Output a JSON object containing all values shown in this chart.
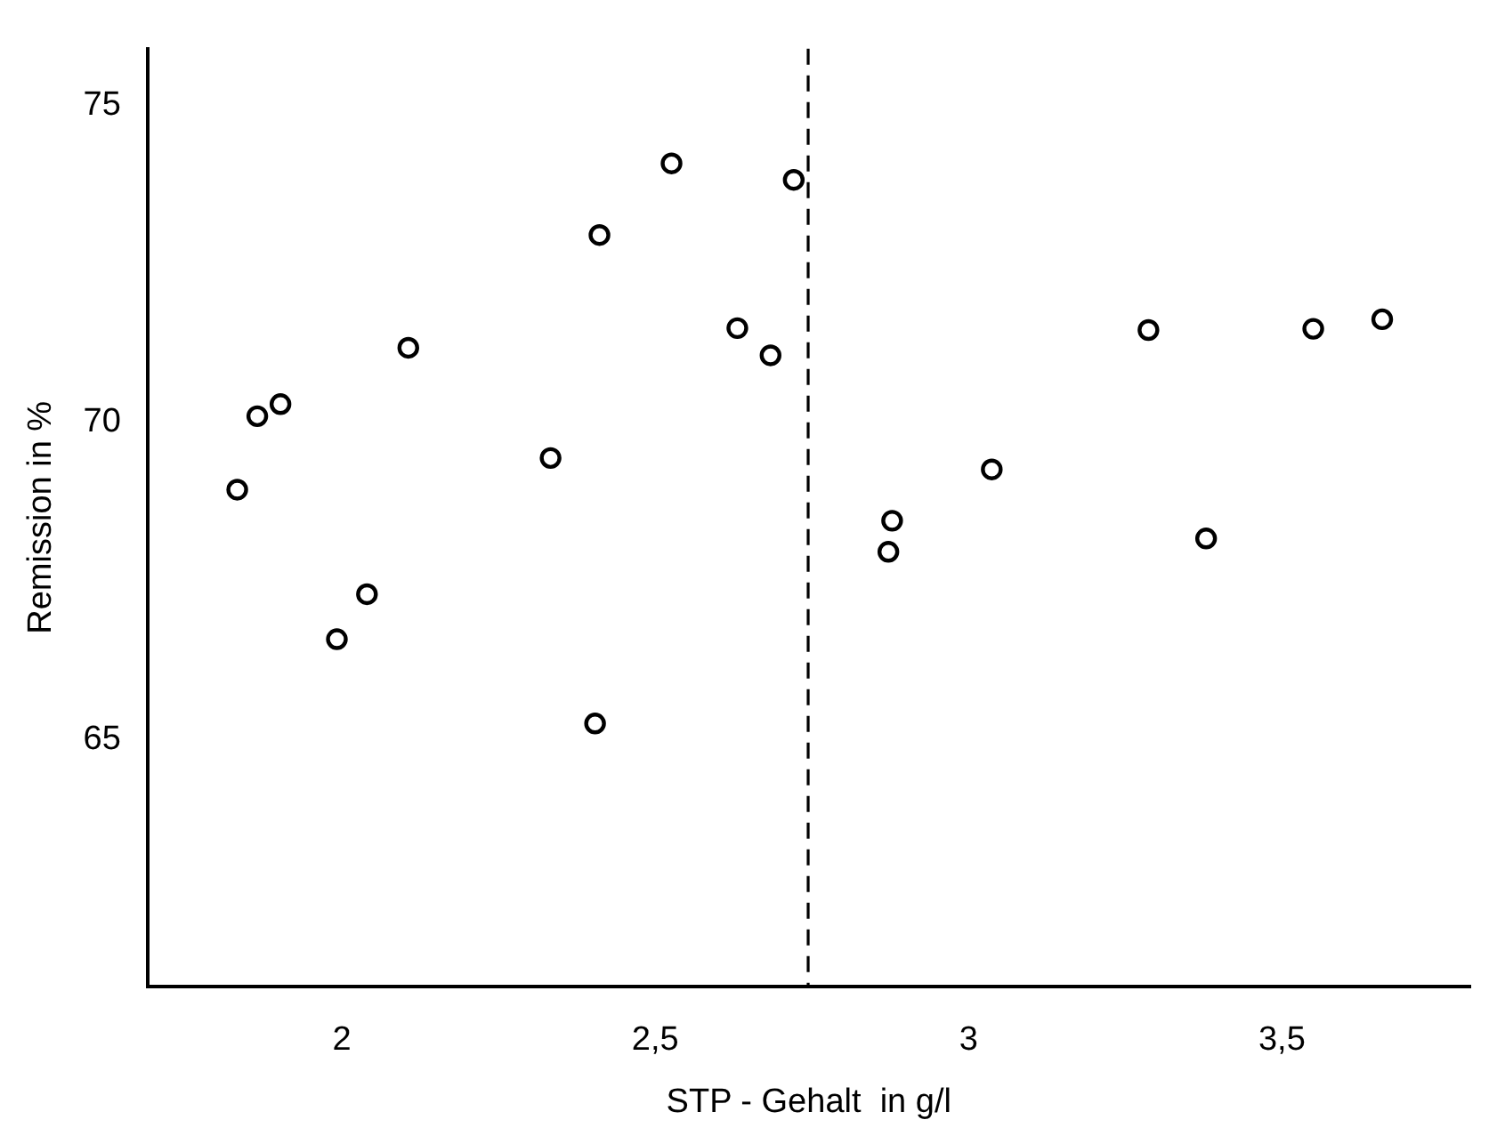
{
  "chart_data": {
    "type": "scatter",
    "xlabel": "STP - Gehalt  in g/l",
    "ylabel": "Remission in %",
    "x": [
      1.833,
      1.865,
      1.902,
      1.992,
      2.04,
      2.106,
      2.333,
      2.404,
      2.411,
      2.526,
      2.631,
      2.684,
      2.721,
      2.872,
      2.878,
      3.037,
      3.287,
      3.379,
      3.55,
      3.66
    ],
    "series": [
      {
        "color": "#000000",
        "values": [
          68.94,
          70.1,
          70.29,
          66.58,
          67.29,
          71.18,
          69.44,
          65.25,
          72.96,
          74.09,
          71.49,
          71.06,
          73.83,
          67.96,
          68.45,
          69.26,
          71.46,
          68.17,
          71.48,
          71.63
        ]
      }
    ],
    "xlim": [
      1.69,
      3.8
    ],
    "ylim": [
      61.1,
      75.9
    ],
    "xticks": [
      2,
      {
        "value": 2.5,
        "label": "2,5"
      },
      3,
      {
        "value": 3.5,
        "label": "3,5"
      }
    ],
    "yticks": [
      65,
      70,
      75
    ],
    "ref_lines": [
      {
        "axis": "x",
        "value": 2.744,
        "color": "#000000",
        "line_style": "dashed"
      }
    ],
    "marker": "circle",
    "grid": false,
    "legend": false
  }
}
